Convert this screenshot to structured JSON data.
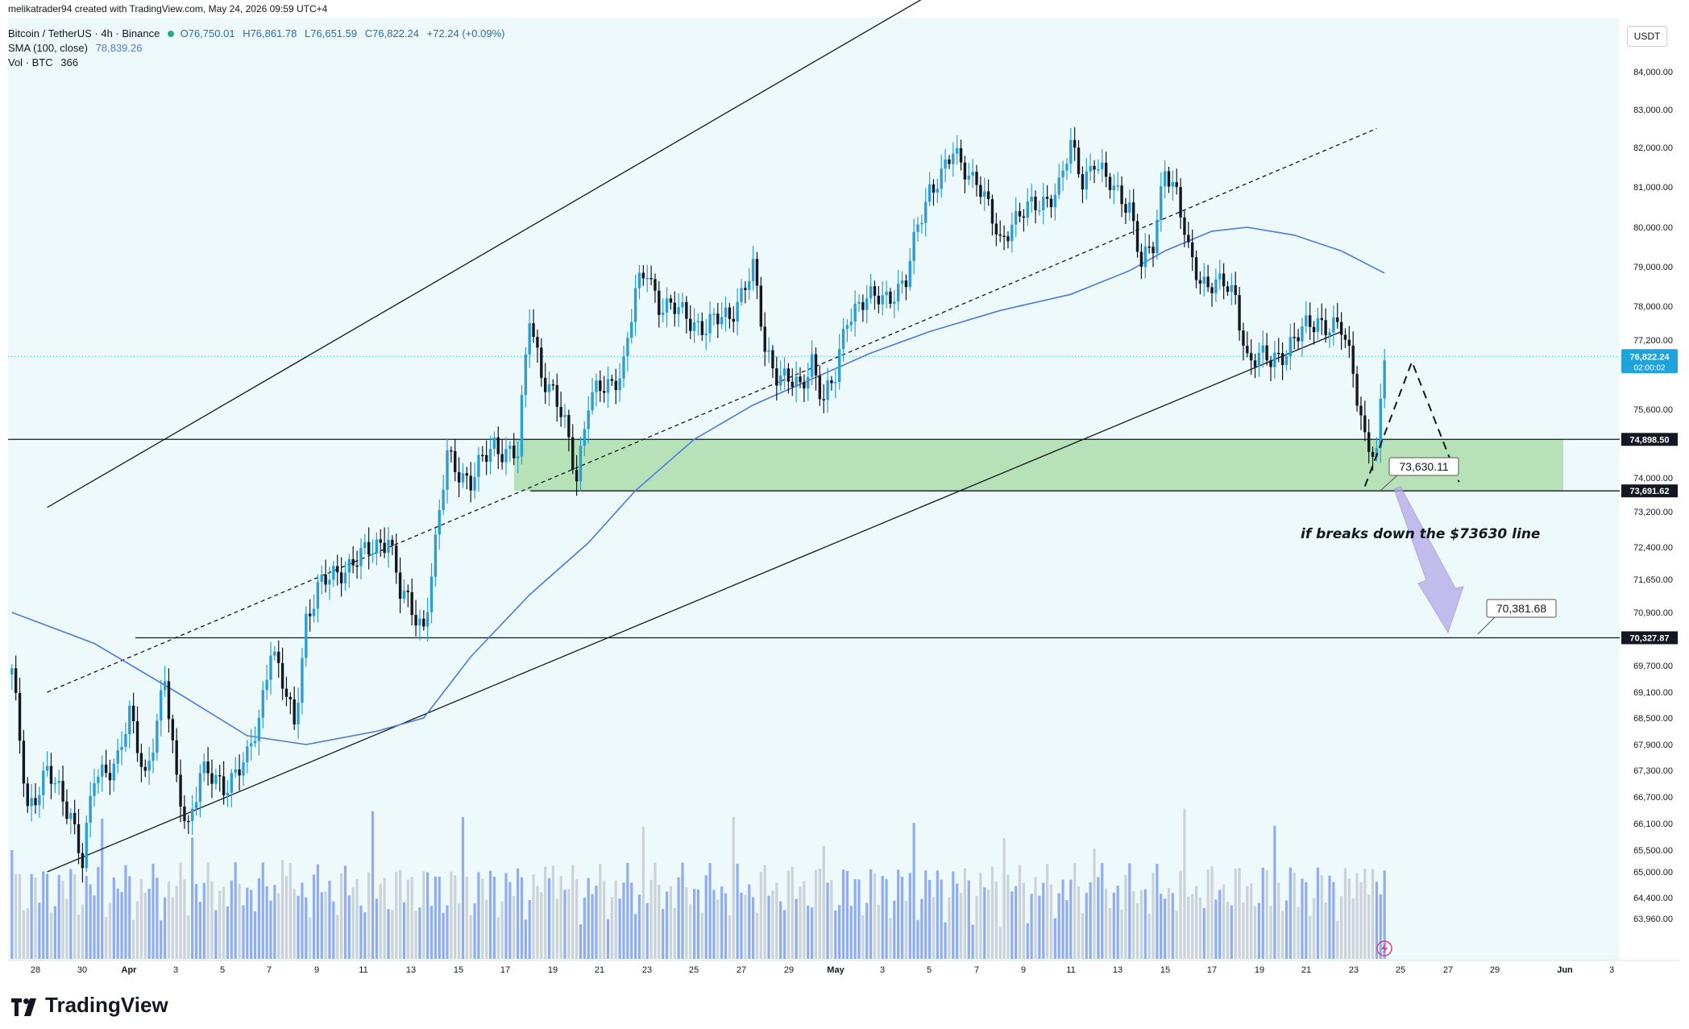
{
  "header": {
    "created_by": "melikatrader94 created with TradingView.com, May 24, 2026 09:59 UTC+4",
    "symbol": "Bitcoin / TetherUS · 4h · Binance",
    "ohlc": {
      "o": "O76,750.01",
      "h": "H76,861.78",
      "l": "L76,651.59",
      "c": "C76,822.24",
      "chg": "+72.24 (+0.09%)"
    },
    "sma_label": "SMA (100, close)",
    "sma_value": "78,839.26",
    "vol_label": "Vol · BTC",
    "vol_value": "366"
  },
  "currency": "USDT",
  "brand": "TradingView",
  "colors": {
    "up": "#2b9fd4",
    "down": "#131722",
    "sma": "#4d79e0",
    "zone": "#a9dca8",
    "price_tag": "#1ea4dc",
    "vol_up": "#7f9ff0",
    "vol_down": "#c6ccd1",
    "bg": "#eef9fb",
    "arrow": "#b3a8e6"
  },
  "chart_data": {
    "type": "candlestick",
    "symbol": "BTCUSDT",
    "timeframe": "4h",
    "x_ticks": [
      "28",
      "30",
      "Apr",
      "3",
      "5",
      "7",
      "9",
      "11",
      "13",
      "15",
      "17",
      "19",
      "21",
      "23",
      "25",
      "27",
      "29",
      "May",
      "3",
      "5",
      "7",
      "9",
      "11",
      "13",
      "15",
      "17",
      "19",
      "21",
      "23",
      "25",
      "27",
      "29",
      "Jun",
      "3"
    ],
    "y_ticks": [
      "84,000.00",
      "83,000.00",
      "82,000.00",
      "81,000.00",
      "80,000.00",
      "79,000.00",
      "78,000.00",
      "77,200.00",
      "75,600.00",
      "74,000.00",
      "73,200.00",
      "72,400.00",
      "71,650.00",
      "70,900.00",
      "69,700.00",
      "69,100.00",
      "68,500.00",
      "67,900.00",
      "67,300.00",
      "66,700.00",
      "66,100.00",
      "65,500.00",
      "65,000.00",
      "64,400.00",
      "63,960.00"
    ],
    "price_path": [
      [
        "Mar 27 00:00",
        69500
      ],
      [
        "Mar 27 16:00",
        66500
      ],
      [
        "Mar 28 12:00",
        67200
      ],
      [
        "Mar 29 12:00",
        66400
      ],
      [
        "Mar 30 00:00",
        65200
      ],
      [
        "Mar 30 12:00",
        67100
      ],
      [
        "Mar 31 12:00",
        67600
      ],
      [
        "Apr 1 00:00",
        68500
      ],
      [
        "Apr 1 16:00",
        67200
      ],
      [
        "Apr 2 12:00",
        69300
      ],
      [
        "Apr 3 00:00",
        67000
      ],
      [
        "Apr 3 12:00",
        66100
      ],
      [
        "Apr 4 00:00",
        67200
      ],
      [
        "Apr 5 00:00",
        67000
      ],
      [
        "Apr 6 00:00",
        67500
      ],
      [
        "Apr 6 12:00",
        68500
      ],
      [
        "Apr 7 00:00",
        70200
      ],
      [
        "Apr 8 00:00",
        68300
      ],
      [
        "Apr 8 12:00",
        70800
      ],
      [
        "Apr 9 00:00",
        71400
      ],
      [
        "Apr 10 00:00",
        71900
      ],
      [
        "Apr 11 00:00",
        72200
      ],
      [
        "Apr 12 00:00",
        72700
      ],
      [
        "Apr 12 12:00",
        71300
      ],
      [
        "Apr 13 12:00",
        70600
      ],
      [
        "Apr 14 00:00",
        72400
      ],
      [
        "Apr 14 12:00",
        74500
      ],
      [
        "Apr 15 00:00",
        74200
      ],
      [
        "Apr 15 12:00",
        73900
      ],
      [
        "Apr 16 12:00",
        74800
      ],
      [
        "Apr 17 12:00",
        74500
      ],
      [
        "Apr 18 00:00",
        77800
      ],
      [
        "Apr 18 12:00",
        76500
      ],
      [
        "Apr 19 00:00",
        75900
      ],
      [
        "Apr 19 12:00",
        75200
      ],
      [
        "Apr 20 00:00",
        74100
      ],
      [
        "Apr 20 12:00",
        75800
      ],
      [
        "Apr 21 12:00",
        76200
      ],
      [
        "Apr 22 00:00",
        76700
      ],
      [
        "Apr 22 12:00",
        78300
      ],
      [
        "Apr 23 00:00",
        78900
      ],
      [
        "Apr 23 12:00",
        78100
      ],
      [
        "Apr 24 12:00",
        77800
      ],
      [
        "Apr 25 12:00",
        77500
      ],
      [
        "Apr 26 12:00",
        77800
      ],
      [
        "Apr 27 12:00",
        78900
      ],
      [
        "Apr 28 00:00",
        77000
      ],
      [
        "Apr 28 12:00",
        76500
      ],
      [
        "Apr 29 12:00",
        76000
      ],
      [
        "Apr 30 00:00",
        76800
      ],
      [
        "Apr 30 12:00",
        75800
      ],
      [
        "May 1 00:00",
        76300
      ],
      [
        "May 1 12:00",
        77800
      ],
      [
        "May 2 00:00",
        78100
      ],
      [
        "May 3 00:00",
        78200
      ],
      [
        "May 4 00:00",
        78600
      ],
      [
        "May 4 12:00",
        80000
      ],
      [
        "May 5 00:00",
        81000
      ],
      [
        "May 5 12:00",
        81300
      ],
      [
        "May 6 00:00",
        81800
      ],
      [
        "May 7 00:00",
        81200
      ],
      [
        "May 7 12:00",
        80400
      ],
      [
        "May 8 00:00",
        79600
      ],
      [
        "May 8 12:00",
        80200
      ],
      [
        "May 9 12:00",
        80500
      ],
      [
        "May 10 12:00",
        81000
      ],
      [
        "May 11 00:00",
        82000
      ],
      [
        "May 11 12:00",
        81200
      ],
      [
        "May 12 00:00",
        81700
      ],
      [
        "May 12 12:00",
        81100
      ],
      [
        "May 13 12:00",
        80600
      ],
      [
        "May 14 00:00",
        79000
      ],
      [
        "May 14 12:00",
        79500
      ],
      [
        "May 15 00:00",
        81600
      ],
      [
        "May 15 12:00",
        80800
      ],
      [
        "May 16 00:00",
        79300
      ],
      [
        "May 16 12:00",
        78700
      ],
      [
        "May 17 12:00",
        78500
      ],
      [
        "May 18 00:00",
        78200
      ],
      [
        "May 18 12:00",
        76800
      ],
      [
        "May 19 12:00",
        76700
      ],
      [
        "May 20 12:00",
        77200
      ],
      [
        "May 21 12:00",
        77700
      ],
      [
        "May 22 12:00",
        77400
      ],
      [
        "May 23 00:00",
        76500
      ],
      [
        "May 23 12:00",
        75000
      ],
      [
        "May 24 00:00",
        74400
      ],
      [
        "May 24 08:00",
        76822.24
      ]
    ],
    "sma_100": [
      [
        "Mar 27 00:00",
        70900
      ],
      [
        "Mar 30 12:00",
        70200
      ],
      [
        "Apr 3 00:00",
        69100
      ],
      [
        "Apr 6 00:00",
        68100
      ],
      [
        "Apr 8 12:00",
        67900
      ],
      [
        "Apr 11 12:00",
        68200
      ],
      [
        "Apr 13 12:00",
        68500
      ],
      [
        "Apr 15 12:00",
        69900
      ],
      [
        "Apr 18 00:00",
        71300
      ],
      [
        "Apr 20 12:00",
        72500
      ],
      [
        "Apr 22 12:00",
        73700
      ],
      [
        "Apr 25 00:00",
        74900
      ],
      [
        "Apr 27 12:00",
        75700
      ],
      [
        "Apr 30 00:00",
        76300
      ],
      [
        "May 2 12:00",
        76900
      ],
      [
        "May 5 00:00",
        77400
      ],
      [
        "May 8 00:00",
        77900
      ],
      [
        "May 11 00:00",
        78300
      ],
      [
        "May 13 12:00",
        78900
      ],
      [
        "May 15 00:00",
        79400
      ],
      [
        "May 17 00:00",
        79900
      ],
      [
        "May 18 12:00",
        80000
      ],
      [
        "May 20 12:00",
        79800
      ],
      [
        "May 22 12:00",
        79400
      ],
      [
        "May 24 08:00",
        78839.26
      ]
    ],
    "horizontal_levels": [
      {
        "price": 74898.5,
        "label": "74,898.50"
      },
      {
        "price": 73691.62,
        "label": "73,691.62"
      },
      {
        "price": 70327.87,
        "label": "70,327.87"
      }
    ],
    "current_price": {
      "price": 76822.24,
      "label": "76,822.24",
      "countdown": "02:00:02"
    },
    "support_zone": {
      "from": 73691.62,
      "to": 74898.5
    },
    "channel": {
      "upper": [
        [
          "Mar 28 12:00",
          73300
        ],
        [
          "May 11 00:00",
          88200
        ]
      ],
      "lower": [
        [
          "Mar 28 12:00",
          65000
        ],
        [
          "May 22 12:00",
          77400
        ]
      ],
      "mid": [
        [
          "Mar 28 12:00",
          69100
        ],
        [
          "May 24 00:00",
          82500
        ]
      ]
    },
    "projection_path": [
      [
        "May 23 12:00",
        73800
      ],
      [
        "May 25 12:00",
        76700
      ],
      [
        "May 27 12:00",
        73900
      ]
    ],
    "annotations": [
      {
        "text": "73,630.11",
        "price": 73630.11
      },
      {
        "text": "70,381.68",
        "price": 70381.68
      },
      {
        "text": "if breaks down the $73630 line"
      }
    ]
  }
}
